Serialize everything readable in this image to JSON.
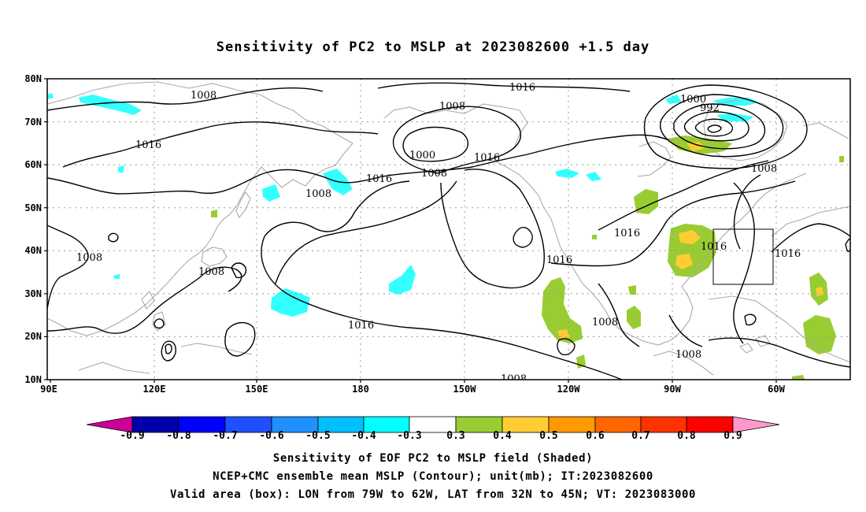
{
  "title": "Sensitivity of PC2 to MSLP at 2023082600 +1.5 day",
  "map": {
    "lat_labels": [
      "80N",
      "70N",
      "60N",
      "50N",
      "40N",
      "30N",
      "20N",
      "10N"
    ],
    "lon_labels": [
      "90E",
      "120E",
      "150E",
      "180",
      "150W",
      "120W",
      "90W",
      "60W"
    ],
    "isobar_labels": [
      {
        "text": "1008"
      },
      {
        "text": "1016"
      },
      {
        "text": "1016"
      },
      {
        "text": "1008"
      },
      {
        "text": "1000"
      },
      {
        "text": "1008"
      },
      {
        "text": "1016"
      },
      {
        "text": "1016"
      },
      {
        "text": "1008"
      },
      {
        "text": "1000"
      },
      {
        "text": "992"
      },
      {
        "text": "1008"
      },
      {
        "text": "1016"
      },
      {
        "text": "1016"
      },
      {
        "text": "1016"
      },
      {
        "text": "1016"
      },
      {
        "text": "1008"
      },
      {
        "text": "1008"
      },
      {
        "text": "1008"
      },
      {
        "text": "1016"
      },
      {
        "text": "1008"
      },
      {
        "text": "1008"
      }
    ],
    "valid_box": {
      "lon_min": "79W",
      "lon_max": "62W",
      "lat_min": "32N",
      "lat_max": "45N"
    },
    "positive_color_green": "#99cc33",
    "positive_color_yellow": "#ffcc33",
    "negative_color_cyan": "#33ffff",
    "negative_color_skyblue": "#33ccff",
    "contour_color": "#000000",
    "coast_color": "#aaaaaa"
  },
  "colorbar": {
    "labels": [
      "-0.9",
      "-0.8",
      "-0.7",
      "-0.6",
      "-0.5",
      "-0.4",
      "-0.3",
      "0.3",
      "0.4",
      "0.5",
      "0.6",
      "0.7",
      "0.8",
      "0.9"
    ],
    "colors": [
      "#cc0099",
      "#0000aa",
      "#0000ff",
      "#1e50ff",
      "#1e90ff",
      "#00bfff",
      "#00ffff",
      "#ffffff",
      "#99cc33",
      "#ffcc33",
      "#ff9900",
      "#ff6600",
      "#ff3300",
      "#ff0000",
      "#ff99cc"
    ]
  },
  "caption": {
    "line1": "Sensitivity of EOF PC2 to MSLP field (Shaded)",
    "line2": "NCEP+CMC ensemble mean MSLP (Contour); unit(mb); IT:2023082600",
    "line3": "Valid area (box): LON from 79W to 62W, LAT from 32N to 45N; VT: 2023083000"
  }
}
